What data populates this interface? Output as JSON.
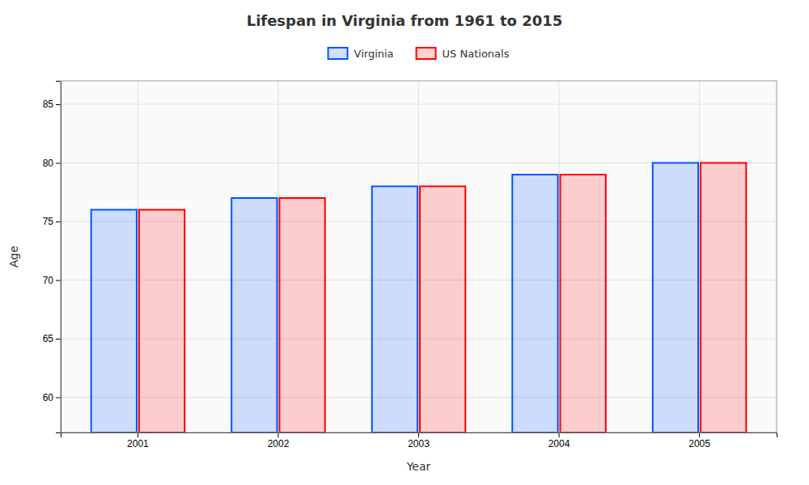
{
  "chart_data": {
    "type": "bar",
    "title": "Lifespan in Virginia from 1961 to 2015",
    "x_label": "Year",
    "y_label": "Age",
    "categories": [
      "2001",
      "2002",
      "2003",
      "2004",
      "2005"
    ],
    "series": [
      {
        "name": "Virginia",
        "color": "#0055ff",
        "values": [
          76,
          77,
          78,
          79,
          80
        ]
      },
      {
        "name": "US Nationals",
        "color": "#ff0000",
        "values": [
          76,
          77,
          78,
          79,
          80
        ]
      }
    ],
    "ylim": [
      57,
      87
    ],
    "yticks": [
      60,
      65,
      70,
      75,
      80,
      85
    ],
    "grid": true,
    "legend": "top"
  }
}
